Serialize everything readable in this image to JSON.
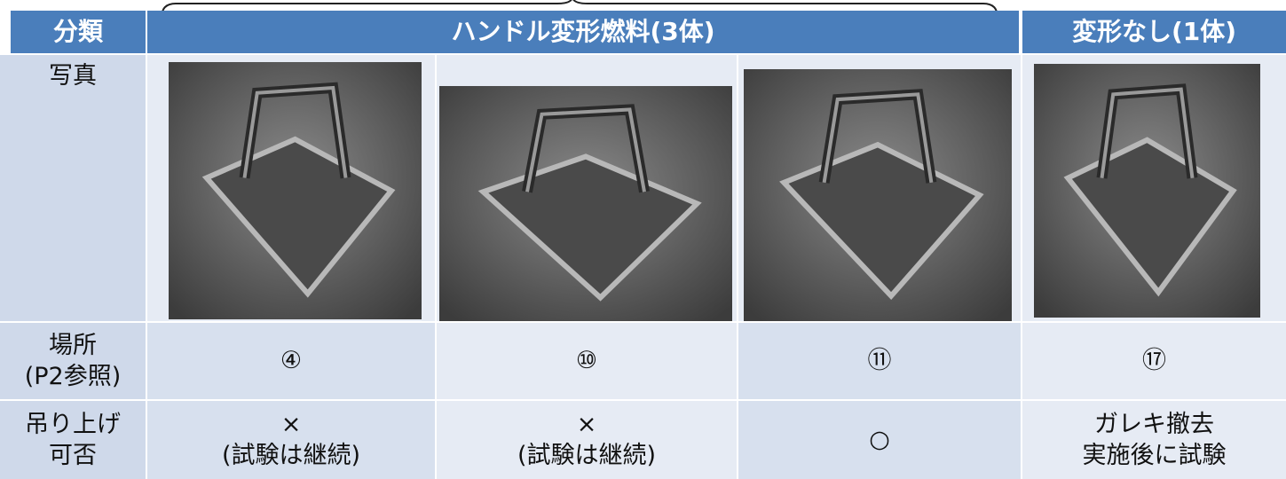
{
  "header": {
    "label": "分類",
    "group": "ハンドル変形燃料(3体)",
    "other": "変形なし(1体)"
  },
  "rows": [
    {
      "label": [
        "写真"
      ]
    },
    {
      "label": [
        "場所",
        "(P2参照)"
      ],
      "cells": [
        [
          "④"
        ],
        [
          "⑩"
        ],
        [
          "⑪"
        ],
        [
          "⑰"
        ]
      ]
    },
    {
      "label": [
        "吊り上げ",
        "可否"
      ],
      "cells": [
        [
          "×",
          "(試験は継続)"
        ],
        [
          "×",
          "(試験は継続)"
        ],
        [
          "○"
        ],
        [
          "ガレキ撤去",
          "実施後に試験"
        ]
      ]
    }
  ]
}
